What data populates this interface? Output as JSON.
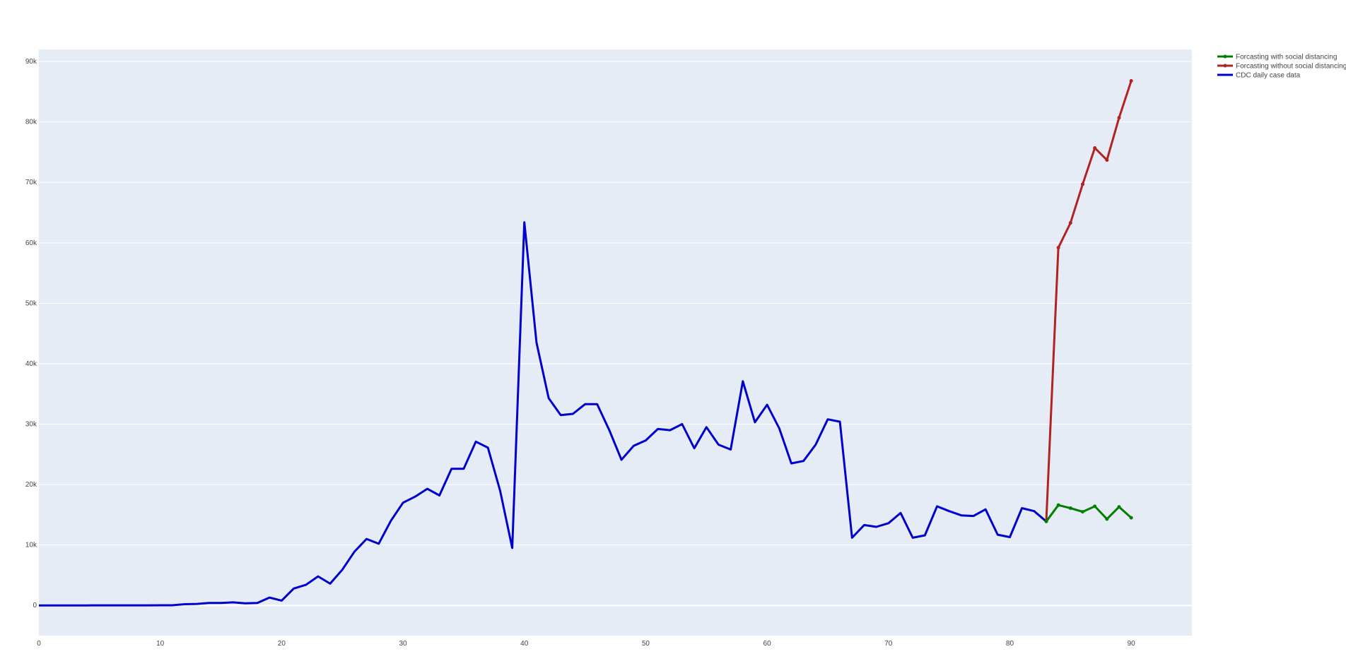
{
  "chart_data": {
    "type": "line",
    "title": "",
    "xlabel": "",
    "ylabel": "",
    "xlim": [
      0,
      95
    ],
    "ylim": [
      -5000,
      92000
    ],
    "x_ticks": [
      0,
      10,
      20,
      30,
      40,
      50,
      60,
      70,
      80,
      90
    ],
    "x_tick_labels": [
      "0",
      "10",
      "20",
      "30",
      "40",
      "50",
      "60",
      "70",
      "80",
      "90"
    ],
    "y_ticks": [
      0,
      10000,
      20000,
      30000,
      40000,
      50000,
      60000,
      70000,
      80000,
      90000
    ],
    "y_tick_labels": [
      "0",
      "10k",
      "20k",
      "30k",
      "40k",
      "50k",
      "60k",
      "70k",
      "80k",
      "90k"
    ],
    "grid": true,
    "legend_position": "top-right",
    "series": [
      {
        "name": "Forcasting with social distancing",
        "color": "#008000",
        "markers": true,
        "x": [
          83,
          84,
          85,
          86,
          87,
          88,
          89,
          90
        ],
        "y": [
          13900,
          16600,
          16100,
          15500,
          16400,
          14300,
          16300,
          14500
        ]
      },
      {
        "name": "Forcasting without social distancing",
        "color": "#b22222",
        "markers": true,
        "x": [
          83,
          84,
          85,
          86,
          87,
          88,
          89,
          90
        ],
        "y": [
          13900,
          59200,
          63300,
          69700,
          75700,
          73700,
          80700,
          86800
        ]
      },
      {
        "name": "CDC daily case data",
        "color": "#0000cd",
        "markers": false,
        "x": [
          0,
          1,
          2,
          3,
          4,
          5,
          6,
          7,
          8,
          9,
          10,
          11,
          12,
          13,
          14,
          15,
          16,
          17,
          18,
          19,
          20,
          21,
          22,
          23,
          24,
          25,
          26,
          27,
          28,
          29,
          30,
          31,
          32,
          33,
          34,
          35,
          36,
          37,
          38,
          39,
          40,
          41,
          42,
          43,
          44,
          45,
          46,
          47,
          48,
          49,
          50,
          51,
          52,
          53,
          54,
          55,
          56,
          57,
          58,
          59,
          60,
          61,
          62,
          63,
          64,
          65,
          66,
          67,
          68,
          69,
          70,
          71,
          72,
          73,
          74,
          75,
          76,
          77,
          78,
          79,
          80,
          81,
          82,
          83
        ],
        "y": [
          0,
          0,
          0,
          5,
          5,
          10,
          10,
          10,
          15,
          15,
          20,
          20,
          200,
          250,
          400,
          400,
          500,
          350,
          400,
          1300,
          800,
          2800,
          3400,
          4800,
          3600,
          5900,
          8900,
          11000,
          10200,
          14000,
          17000,
          18000,
          19300,
          18200,
          22600,
          22600,
          27100,
          26100,
          19000,
          9500,
          63400,
          43500,
          34300,
          31500,
          31700,
          33300,
          33300,
          29000,
          24100,
          26400,
          27300,
          29200,
          29000,
          30000,
          26000,
          29500,
          26600,
          25800,
          37100,
          30300,
          33200,
          29300,
          23500,
          23900,
          26600,
          30800,
          30400,
          11200,
          13300,
          13000,
          13600,
          15300,
          11200,
          11600,
          16400,
          15600,
          14900,
          14800,
          15900,
          11700,
          11300,
          16100,
          15600,
          13900
        ]
      }
    ]
  }
}
